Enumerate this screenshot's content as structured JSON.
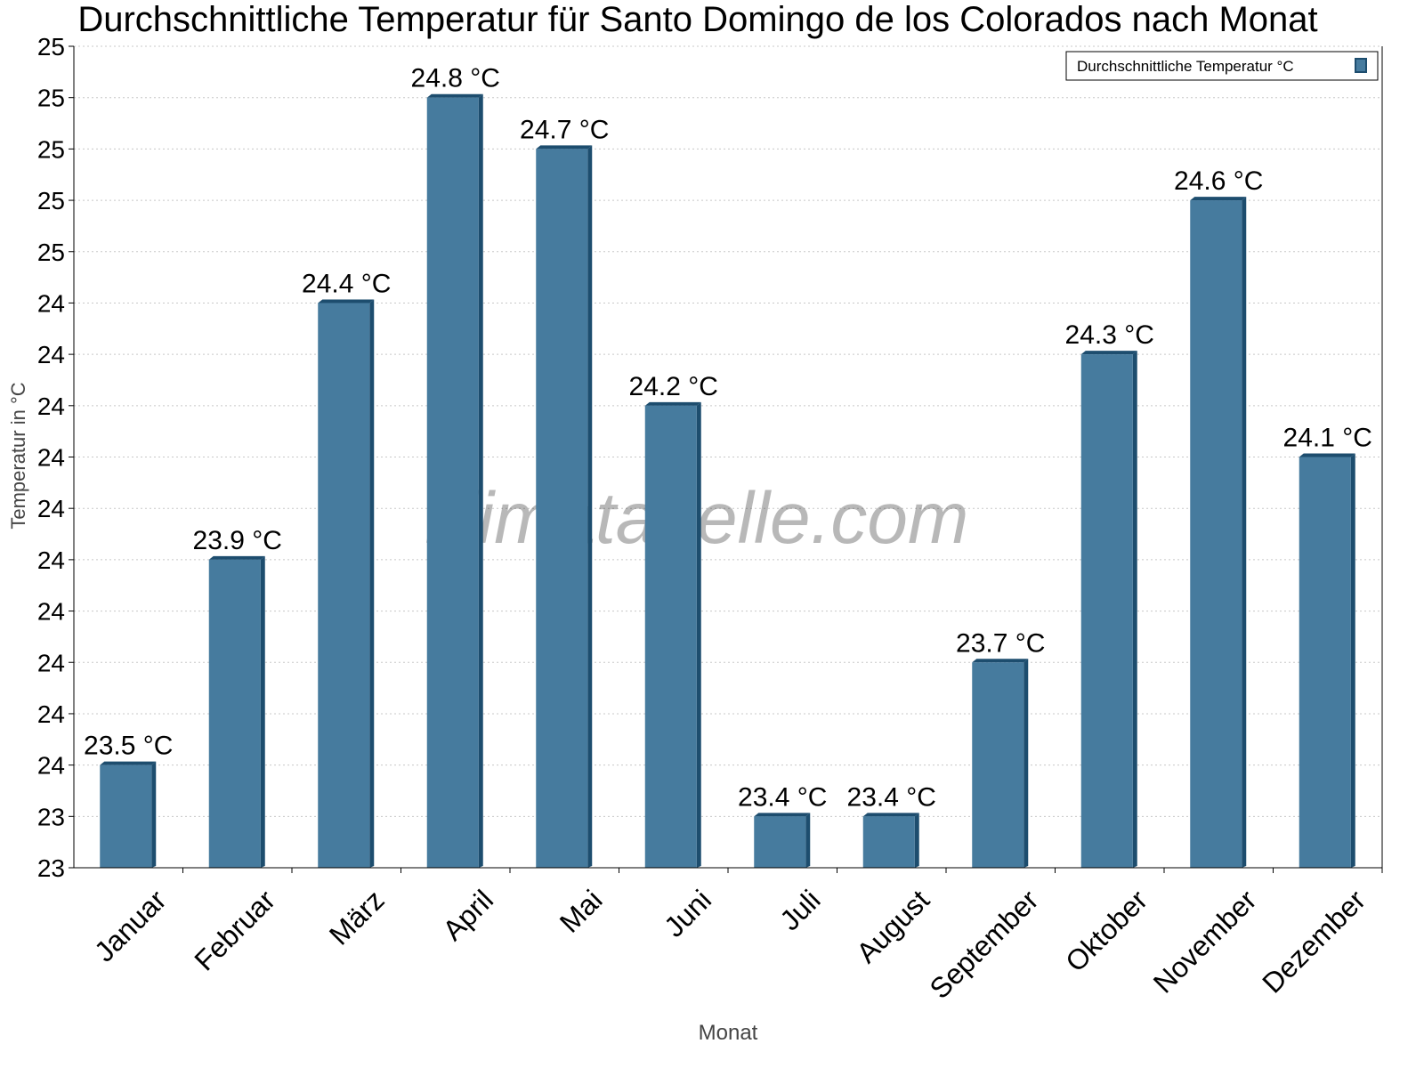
{
  "chart_data": {
    "type": "bar",
    "title": "Durchschnittliche Temperatur für Santo Domingo de los Colorados nach Monat",
    "xlabel": "Monat",
    "ylabel": "Temperatur in °C",
    "categories": [
      "Januar",
      "Februar",
      "März",
      "April",
      "Mai",
      "Juni",
      "Juli",
      "August",
      "September",
      "Oktober",
      "November",
      "Dezember"
    ],
    "series": [
      {
        "name": "Durchschnittliche Temperatur °C",
        "values": [
          23.5,
          23.9,
          24.4,
          24.8,
          24.7,
          24.2,
          23.4,
          23.4,
          23.7,
          24.3,
          24.6,
          24.1
        ]
      }
    ],
    "data_labels": [
      "23.5 °C",
      "23.9 °C",
      "24.4 °C",
      "24.8 °C",
      "24.7 °C",
      "24.2 °C",
      "23.4 °C",
      "23.4 °C",
      "23.7 °C",
      "24.3 °C",
      "24.6 °C",
      "24.1 °C"
    ],
    "ylim": [
      23.3,
      24.9
    ],
    "ytick_values": [
      23.3,
      23.4,
      23.5,
      23.6,
      23.7,
      23.8,
      23.9,
      24.0,
      24.1,
      24.2,
      24.3,
      24.4,
      24.5,
      24.6,
      24.7,
      24.8,
      24.9
    ],
    "ytick_labels": [
      "23",
      "23",
      "24",
      "24",
      "24",
      "24",
      "24",
      "24",
      "24",
      "24",
      "24",
      "24",
      "25",
      "25",
      "25",
      "25",
      "25"
    ],
    "grid": true,
    "legend_position": "top-right",
    "colors": {
      "bar": "#467b9e",
      "bar_side": "#1d4d6e",
      "grid": "#c8c8c8"
    },
    "watermark": "klimatabelle.com"
  }
}
